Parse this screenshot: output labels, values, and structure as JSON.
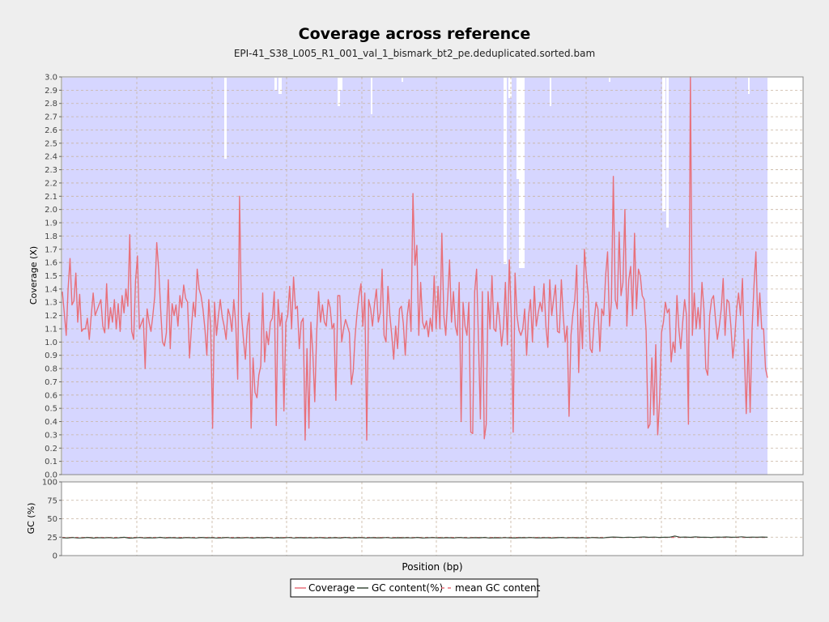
{
  "colors": {
    "coverage_line": "#e8707a",
    "coverage_fill": "#d6d6ff",
    "gc_line": "#3a4a3a",
    "mean_gc": "#e8707a",
    "grid": "#c8b4a0",
    "plot_bg": "#ffffff"
  },
  "chart_data": [
    {
      "type": "area",
      "title": "Coverage across reference",
      "subtitle": "EPI-41_S38_L005_R1_001_val_1_bismark_bt2_pe.deduplicated.sorted.bam",
      "ylabel": "Coverage (X)",
      "ylim": [
        0,
        3.0
      ],
      "yticks": [
        "0.0",
        "0.1",
        "0.2",
        "0.3",
        "0.4",
        "0.5",
        "0.6",
        "0.7",
        "0.8",
        "0.9",
        "1.0",
        "1.1",
        "1.2",
        "1.3",
        "1.4",
        "1.5",
        "1.6",
        "1.7",
        "1.8",
        "1.9",
        "2.0",
        "2.1",
        "2.2",
        "2.3",
        "2.4",
        "2.5",
        "2.6",
        "2.7",
        "2.8",
        "2.9",
        "3.0"
      ],
      "grid": true,
      "series": [
        {
          "name": "Coverage",
          "values": [
            1.38,
            1.22,
            1.05,
            1.4,
            1.63,
            1.28,
            1.31,
            1.52,
            1.15,
            1.36,
            1.08,
            1.1,
            1.1,
            1.18,
            1.02,
            1.2,
            1.37,
            1.2,
            1.24,
            1.28,
            1.32,
            1.12,
            1.07,
            1.44,
            1.1,
            1.26,
            1.15,
            1.32,
            1.1,
            1.29,
            1.08,
            1.35,
            1.22,
            1.4,
            1.27,
            1.81,
            1.08,
            1.02,
            1.46,
            1.65,
            1.1,
            1.14,
            1.18,
            0.8,
            1.25,
            1.15,
            1.08,
            1.2,
            1.35,
            1.75,
            1.55,
            1.25,
            1.0,
            0.97,
            1.07,
            1.47,
            0.95,
            1.29,
            1.2,
            1.28,
            1.12,
            1.35,
            1.26,
            1.43,
            1.33,
            1.3,
            0.88,
            1.1,
            1.3,
            1.19,
            1.55,
            1.4,
            1.35,
            1.25,
            1.1,
            0.9,
            1.32,
            1.12,
            0.35,
            1.3,
            1.05,
            1.2,
            1.32,
            1.19,
            1.12,
            1.02,
            1.25,
            1.2,
            1.08,
            1.32,
            1.14,
            0.72,
            2.1,
            1.2,
            1.02,
            0.87,
            1.12,
            1.22,
            0.35,
            0.88,
            0.62,
            0.58,
            0.75,
            0.82,
            1.37,
            0.85,
            1.08,
            0.98,
            1.15,
            1.18,
            1.38,
            0.37,
            1.32,
            1.12,
            1.22,
            0.48,
            1.15,
            1.2,
            1.42,
            1.1,
            1.49,
            1.25,
            1.27,
            0.95,
            1.15,
            1.18,
            0.26,
            0.95,
            0.35,
            1.15,
            0.92,
            0.55,
            1.06,
            1.38,
            1.15,
            1.28,
            1.15,
            1.12,
            1.32,
            1.26,
            1.1,
            1.14,
            0.56,
            1.35,
            1.35,
            1.0,
            1.1,
            1.17,
            1.12,
            1.07,
            0.68,
            0.78,
            1.05,
            1.22,
            1.35,
            1.44,
            1.12,
            1.37,
            0.26,
            1.32,
            1.25,
            1.12,
            1.28,
            1.4,
            1.15,
            1.22,
            1.55,
            1.05,
            1.0,
            1.42,
            1.2,
            1.05,
            0.87,
            1.12,
            0.95,
            1.25,
            1.27,
            1.14,
            0.9,
            1.2,
            1.32,
            1.08,
            2.12,
            1.58,
            1.73,
            1.05,
            1.45,
            1.15,
            1.1,
            1.16,
            1.04,
            1.18,
            1.08,
            1.5,
            1.1,
            1.42,
            1.1,
            1.82,
            1.2,
            1.05,
            1.33,
            1.62,
            1.15,
            1.38,
            1.12,
            1.05,
            1.45,
            0.4,
            1.3,
            1.12,
            1.05,
            1.3,
            0.32,
            0.31,
            1.38,
            1.55,
            1.02,
            0.42,
            1.38,
            0.27,
            0.38,
            1.38,
            1.1,
            1.5,
            1.1,
            1.08,
            1.3,
            1.16,
            0.97,
            1.12,
            1.45,
            0.98,
            1.62,
            1.2,
            0.32,
            1.52,
            1.2,
            1.09,
            1.05,
            1.1,
            1.25,
            0.9,
            1.2,
            1.32,
            1.0,
            1.42,
            1.12,
            1.22,
            1.3,
            1.23,
            1.44,
            1.12,
            0.96,
            1.47,
            1.2,
            1.32,
            1.43,
            1.08,
            1.07,
            1.47,
            1.2,
            1.0,
            1.12,
            0.44,
            1.05,
            1.21,
            1.32,
            1.58,
            0.77,
            1.25,
            0.95,
            1.7,
            1.5,
            1.35,
            0.95,
            0.92,
            1.15,
            1.3,
            1.25,
            0.93,
            1.25,
            1.2,
            1.5,
            1.68,
            1.12,
            1.3,
            2.25,
            1.32,
            1.25,
            1.83,
            1.35,
            1.45,
            2.0,
            1.12,
            1.47,
            1.57,
            1.2,
            1.82,
            1.25,
            1.55,
            1.5,
            1.35,
            1.32,
            1.08,
            0.35,
            0.38,
            0.88,
            0.45,
            0.98,
            0.3,
            0.55,
            1.07,
            1.15,
            1.3,
            1.22,
            1.25,
            0.85,
            1.0,
            0.92,
            1.35,
            1.1,
            0.95,
            1.15,
            1.32,
            1.2,
            0.38,
            3.0,
            1.05,
            1.37,
            1.1,
            1.26,
            1.1,
            1.45,
            1.25,
            0.8,
            0.75,
            1.2,
            1.32,
            1.35,
            1.18,
            1.02,
            1.12,
            1.25,
            1.48,
            1.05,
            1.32,
            1.3,
            1.12,
            0.88,
            1.02,
            1.25,
            1.37,
            1.2,
            1.48,
            0.92,
            0.46,
            1.02,
            0.47,
            1.1,
            1.42,
            1.68,
            1.12,
            1.37,
            1.1,
            1.1,
            0.8,
            0.73
          ]
        }
      ]
    },
    {
      "type": "line",
      "ylabel": "GC (%)",
      "xlabel": "Position (bp)",
      "ylim": [
        0,
        100
      ],
      "yticks": [
        "0",
        "25",
        "50",
        "75",
        "100"
      ],
      "grid": true,
      "series": [
        {
          "name": "GC content(%)",
          "values": [
            24.2,
            23.8,
            24.5,
            23.9,
            24.1,
            24.6,
            23.7,
            24.3,
            24.0,
            24.4,
            23.9,
            24.2,
            24.8,
            23.6,
            24.1,
            24.5,
            23.8,
            24.2,
            24.0,
            24.7,
            23.9,
            24.3,
            24.1,
            23.7,
            24.4,
            24.2,
            23.9,
            24.6,
            24.0,
            24.3,
            23.8,
            24.1,
            24.5,
            23.9,
            24.2,
            24.0,
            24.4,
            23.7,
            24.3,
            24.1,
            24.6,
            23.9,
            24.2,
            24.0,
            24.5,
            23.8,
            24.3,
            24.1,
            24.2,
            24.0,
            24.4,
            23.9,
            24.1,
            24.3,
            23.8,
            24.6,
            24.0,
            24.2,
            24.4,
            23.9,
            24.3,
            24.1,
            24.0,
            24.5,
            23.8,
            24.2,
            24.1,
            24.3,
            24.0,
            24.6,
            23.9,
            24.2,
            24.4,
            24.0,
            24.1,
            24.3,
            23.9,
            24.5,
            24.2,
            24.0,
            24.3,
            24.1,
            24.6,
            23.9,
            24.2,
            24.0,
            24.4,
            24.1,
            23.8,
            24.3,
            24.2,
            24.5,
            24.0,
            24.1,
            24.3,
            23.9,
            24.2,
            24.6,
            24.0,
            24.4,
            24.1,
            24.3,
            23.9,
            24.5,
            24.2,
            24.0,
            24.7,
            25.2,
            24.8,
            24.5,
            25.0,
            24.6,
            24.9,
            25.3,
            24.7,
            25.1,
            24.6,
            24.8,
            25.0,
            26.5,
            24.9,
            25.2,
            24.7,
            25.4,
            24.8,
            25.0,
            24.6,
            25.1,
            24.9,
            25.3,
            24.8,
            25.0,
            25.5,
            24.7,
            25.1,
            24.9,
            25.2,
            25.0
          ]
        },
        {
          "name": "mean GC content",
          "values": [
            24.6
          ]
        }
      ]
    }
  ],
  "legend": {
    "placement": "bottom-center",
    "items": [
      {
        "label": "Coverage"
      },
      {
        "label": "GC content(%)"
      },
      {
        "label": "mean GC content"
      }
    ]
  }
}
